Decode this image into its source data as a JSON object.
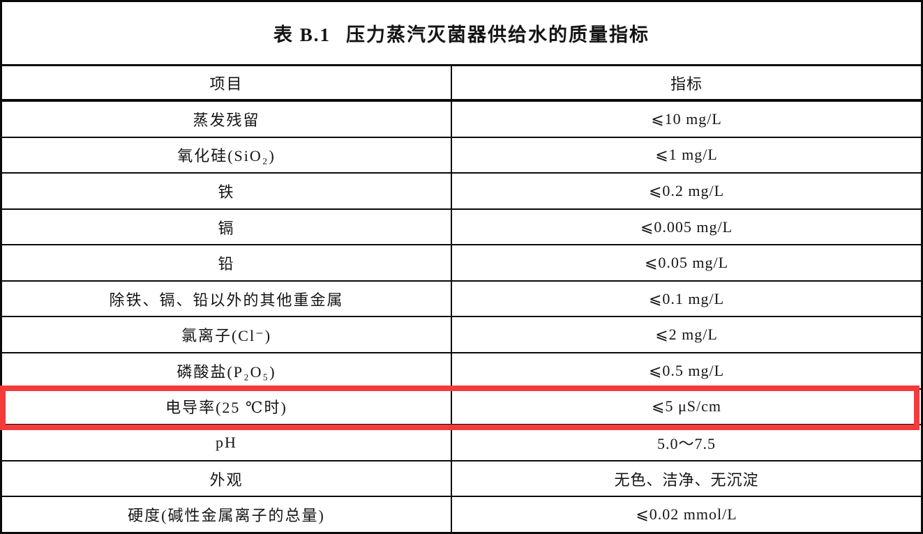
{
  "table": {
    "label": "表 B.1",
    "title": "压力蒸汽灭菌器供给水的质量指标",
    "columns": [
      "项目",
      "指标"
    ],
    "rows": [
      {
        "item": "蒸发残留",
        "value": "⩽10 mg/L",
        "highlighted": false
      },
      {
        "item": "氧化硅(SiO₂)",
        "value": "⩽1 mg/L",
        "highlighted": false
      },
      {
        "item": "铁",
        "value": "⩽0.2 mg/L",
        "highlighted": false
      },
      {
        "item": "镉",
        "value": "⩽0.005 mg/L",
        "highlighted": false
      },
      {
        "item": "铅",
        "value": "⩽0.05 mg/L",
        "highlighted": false
      },
      {
        "item": "除铁、镉、铅以外的其他重金属",
        "value": "⩽0.1 mg/L",
        "highlighted": false
      },
      {
        "item": "氯离子(Cl⁻)",
        "value": "⩽2 mg/L",
        "highlighted": false
      },
      {
        "item": "磷酸盐(P₂O₅)",
        "value": "⩽0.5 mg/L",
        "highlighted": false
      },
      {
        "item": "电导率(25 ℃时)",
        "value": "⩽5 μS/cm",
        "highlighted": true
      },
      {
        "item": "pH",
        "value": "5.0～7.5",
        "highlighted": false
      },
      {
        "item": "外观",
        "value": "无色、洁净、无沉淀",
        "highlighted": false
      },
      {
        "item": "硬度(碱性金属离子的总量)",
        "value": "⩽0.02 mmol/L",
        "highlighted": false
      }
    ],
    "colors": {
      "border": "#0a0a0a",
      "highlight": "#f43b3b"
    }
  }
}
